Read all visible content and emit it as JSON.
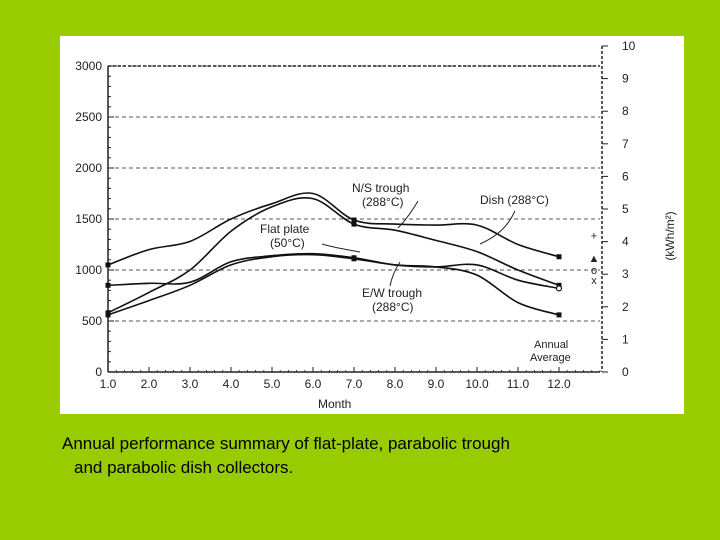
{
  "chart_data": {
    "type": "line",
    "x": [
      1.0,
      2.0,
      3.0,
      4.0,
      5.0,
      6.0,
      7.0,
      8.0,
      9.0,
      10.0,
      11.0,
      12.0
    ],
    "x_tick_labels": [
      "1.0",
      "2.0",
      "3.0",
      "4.0",
      "5.0",
      "6.0",
      "7.0",
      "8.0",
      "9.0",
      "10.0",
      "11.0",
      "12.0"
    ],
    "xlabel": "Month",
    "xlim": [
      1.0,
      13.0
    ],
    "ylim": [
      0,
      3000
    ],
    "y_tick_labels": [
      "0",
      "500",
      "1000",
      "1500",
      "2000",
      "2500",
      "3000"
    ],
    "y2lim": [
      0,
      10
    ],
    "y2label": "(kWh/m²)",
    "y2_tick_labels": [
      "0",
      "1",
      "2",
      "3",
      "4",
      "5",
      "6",
      "7",
      "8",
      "9",
      "10"
    ],
    "grid": true,
    "series": [
      {
        "name": "Dish (288°C)",
        "values": [
          1050,
          1200,
          1280,
          1500,
          1650,
          1750,
          1490,
          1450,
          1440,
          1440,
          1250,
          1130
        ]
      },
      {
        "name": "N/S trough (288°C)",
        "values": [
          580,
          780,
          1000,
          1380,
          1620,
          1700,
          1450,
          1390,
          1290,
          1180,
          1000,
          850
        ]
      },
      {
        "name": "Flat plate (50°C)",
        "values": [
          850,
          870,
          880,
          1080,
          1140,
          1160,
          1120,
          1050,
          1030,
          1050,
          900,
          820
        ]
      },
      {
        "name": "E/W trough (288°C)",
        "values": [
          560,
          700,
          850,
          1050,
          1130,
          1150,
          1110,
          1050,
          1030,
          950,
          680,
          560
        ]
      }
    ],
    "annual_average": {
      "label_line1": "Annual",
      "label_line2": "Average",
      "markers": [
        "+",
        "▲",
        "o",
        "x"
      ]
    },
    "annotations": {
      "ns_trough_line1": "N/S trough",
      "ns_trough_line2": "(288°C)",
      "dish": "Dish (288°C)",
      "flat_plate_line1": "Flat plate",
      "flat_plate_line2": "(50°C)",
      "ew_trough_line1": "E/W trough",
      "ew_trough_line2": "(288°C)"
    }
  },
  "caption": {
    "line1": "Annual performance summary of flat-plate, parabolic trough",
    "line2": "and parabolic dish collectors."
  }
}
